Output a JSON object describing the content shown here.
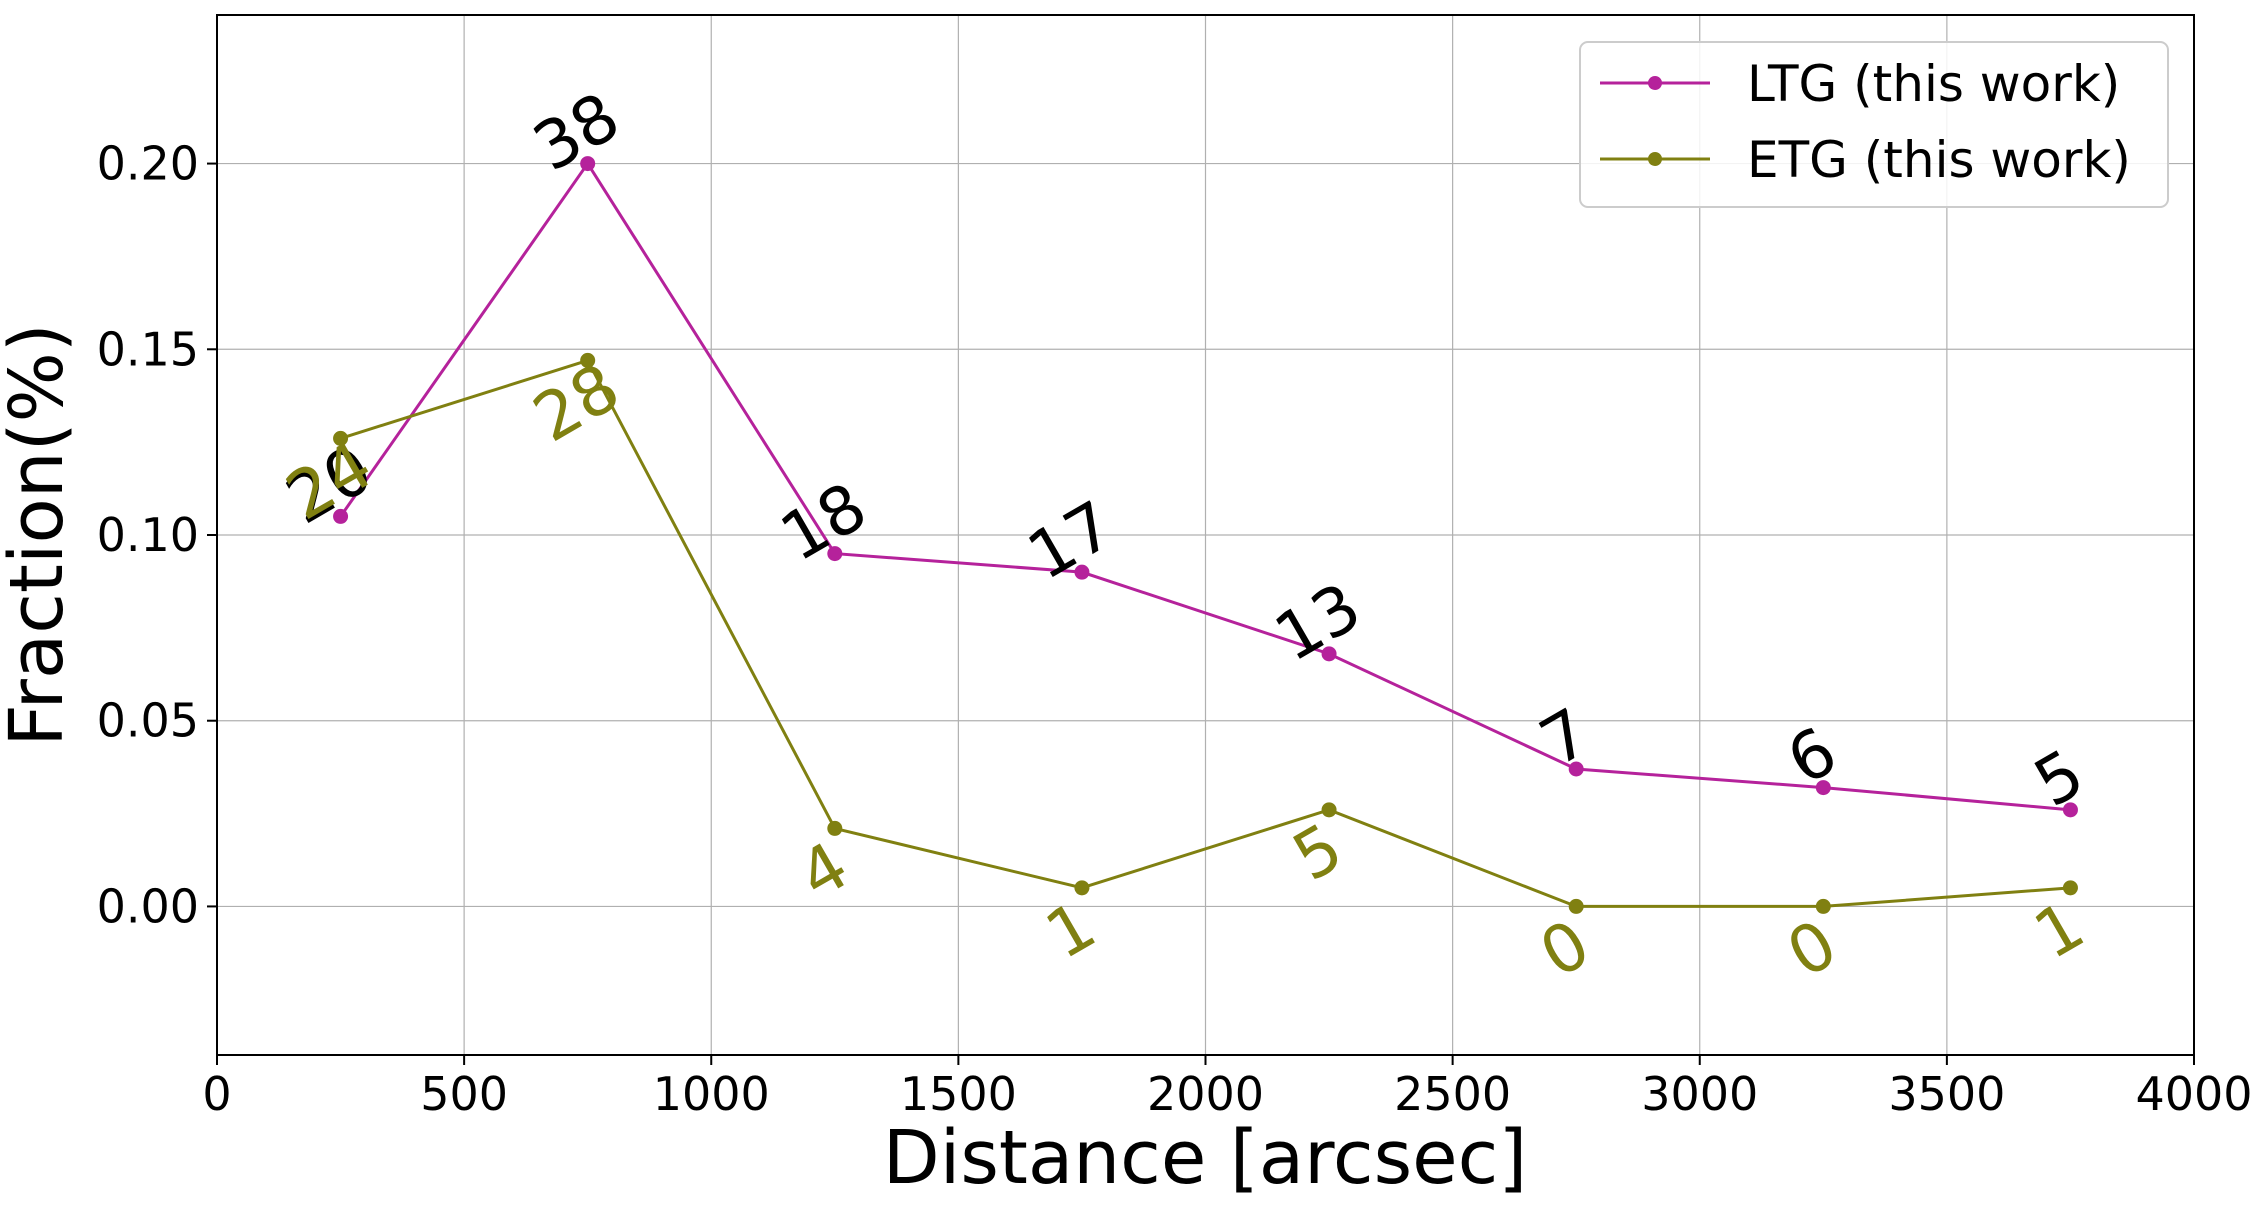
{
  "chart_data": {
    "type": "line",
    "xlabel": "Distance [arcsec]",
    "ylabel": "Fraction(%)",
    "xlim": [
      0,
      4000
    ],
    "ylim": [
      -0.04,
      0.24
    ],
    "xticks": [
      0,
      500,
      1000,
      1500,
      2000,
      2500,
      3000,
      3500,
      4000
    ],
    "xtick_labels": [
      "0",
      "500",
      "1000",
      "1500",
      "2000",
      "2500",
      "3000",
      "3500",
      "4000"
    ],
    "yticks": [
      0.0,
      0.05,
      0.1,
      0.15,
      0.2
    ],
    "ytick_labels": [
      "0.00",
      "0.05",
      "0.10",
      "0.15",
      "0.20"
    ],
    "grid": true,
    "legend_position": "top-right",
    "x": [
      250,
      750,
      1250,
      1750,
      2250,
      2750,
      3250,
      3750
    ],
    "series": [
      {
        "name": "LTG (this work)",
        "color": "#b5229b",
        "label_color": "#000000",
        "label_placement": "above",
        "values": [
          0.105,
          0.2,
          0.095,
          0.09,
          0.068,
          0.037,
          0.032,
          0.026
        ],
        "point_labels": [
          "20",
          "38",
          "18",
          "17",
          "13",
          "7",
          "6",
          "5"
        ]
      },
      {
        "name": "ETG (this work)",
        "color": "#808011",
        "label_color": "#808011",
        "label_placement": "below",
        "values": [
          0.126,
          0.147,
          0.021,
          0.005,
          0.026,
          0.0,
          0.0,
          0.005
        ],
        "point_labels": [
          "24",
          "28",
          "4",
          "1",
          "5",
          "0",
          "0",
          "1"
        ]
      }
    ]
  },
  "legend": {
    "items": [
      "LTG (this work)",
      "ETG (this work)"
    ]
  }
}
